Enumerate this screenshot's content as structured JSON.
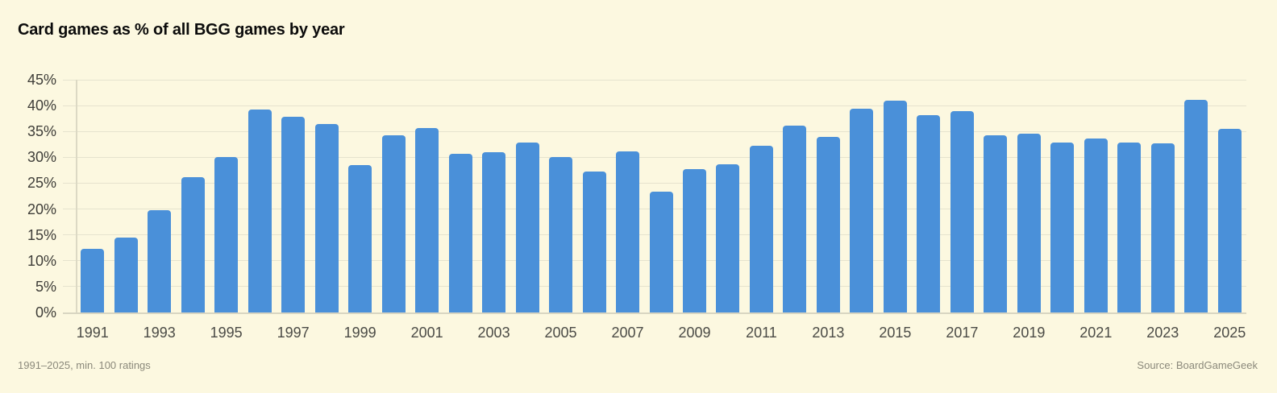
{
  "title": "Card games as % of all BGG games by year",
  "footer": {
    "left_note": "1991–2025, min. 100 ratings",
    "right_note": "Source: BoardGameGeek"
  },
  "colors": {
    "background": "#FCF8E0",
    "bar": "#4A90D9",
    "gridline": "#E6E3CE",
    "baseline": "#D8D5C2",
    "spine": "#DCD9C4",
    "title_text": "#0B0B0B",
    "y_tick_text": "#3E3D38",
    "x_tick_text": "#4B4B46",
    "footnote_text": "#8B897B"
  },
  "chart_data": {
    "type": "bar",
    "title": "Card games as % of all BGG games by year",
    "xlabel": "",
    "ylabel": "",
    "ylim": [
      0,
      45
    ],
    "yticks": [
      0,
      5,
      10,
      15,
      20,
      25,
      30,
      35,
      40,
      45
    ],
    "ytick_suffix": "%",
    "grid": true,
    "legend": false,
    "categories": [
      1991,
      1992,
      1993,
      1994,
      1995,
      1996,
      1997,
      1998,
      1999,
      2000,
      2001,
      2002,
      2003,
      2004,
      2005,
      2006,
      2007,
      2008,
      2009,
      2010,
      2011,
      2012,
      2013,
      2014,
      2015,
      2016,
      2017,
      2018,
      2019,
      2020,
      2021,
      2022,
      2023,
      2024,
      2025
    ],
    "values": [
      12.3,
      14.5,
      19.8,
      26.2,
      30.1,
      39.2,
      37.8,
      36.5,
      28.5,
      34.2,
      35.6,
      30.7,
      31.0,
      32.8,
      30.0,
      27.3,
      31.2,
      23.3,
      27.7,
      28.6,
      32.3,
      36.2,
      34.0,
      39.4,
      40.9,
      38.2,
      38.9,
      34.2,
      34.5,
      32.8,
      33.7,
      32.9,
      32.7,
      41.1,
      35.5
    ],
    "xtick_labels": [
      1991,
      1993,
      1995,
      1997,
      1999,
      2001,
      2003,
      2005,
      2007,
      2009,
      2011,
      2013,
      2015,
      2017,
      2019,
      2021,
      2023,
      2025
    ]
  }
}
